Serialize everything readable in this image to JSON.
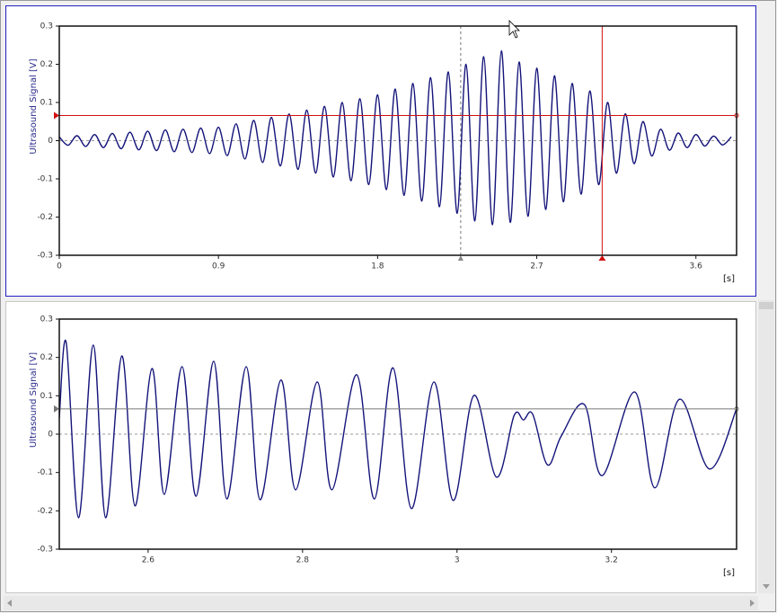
{
  "chart_data": [
    {
      "type": "line",
      "y_label": "Ultrasound Signal [V]",
      "x_unit": "[s]",
      "xlim": [
        0,
        3.83
      ],
      "xticks": [
        0,
        0.9,
        1.8,
        2.7,
        3.6
      ],
      "ylim": [
        -0.3,
        0.3
      ],
      "yticks": [
        -0.3,
        -0.2,
        -0.1,
        0,
        0.1,
        0.2,
        0.3
      ],
      "cursor_x": 3.07,
      "cursor_y": 0.066,
      "marker_x": 2.27,
      "cursor_color": "#d01010",
      "series": [
        {
          "color": "#14147a",
          "x": [
            0,
            0.05,
            0.1,
            0.15,
            0.2,
            0.25,
            0.3,
            0.35,
            0.4,
            0.45,
            0.5,
            0.55,
            0.6,
            0.65,
            0.7,
            0.75,
            0.8,
            0.85,
            0.9,
            0.95,
            1,
            1.05,
            1.1,
            1.15,
            1.2,
            1.25,
            1.3,
            1.35,
            1.4,
            1.45,
            1.5,
            1.55,
            1.6,
            1.65,
            1.7,
            1.75,
            1.8,
            1.85,
            1.9,
            1.95,
            2,
            2.05,
            2.1,
            2.15,
            2.2,
            2.25,
            2.3,
            2.35,
            2.4,
            2.45,
            2.5,
            2.55,
            2.6,
            2.65,
            2.7,
            2.75,
            2.8,
            2.85,
            2.9,
            2.95,
            3,
            3.05,
            3.1,
            3.15,
            3.2,
            3.25,
            3.3,
            3.35,
            3.4,
            3.45,
            3.5,
            3.55,
            3.6,
            3.65,
            3.7,
            3.75,
            3.8
          ],
          "values": [
            0.01,
            -0.012,
            0.013,
            -0.015,
            0.016,
            -0.018,
            0.019,
            -0.021,
            0.022,
            -0.024,
            0.025,
            -0.026,
            0.028,
            -0.029,
            0.03,
            -0.031,
            0.033,
            -0.034,
            0.035,
            -0.039,
            0.044,
            -0.048,
            0.053,
            -0.057,
            0.061,
            -0.066,
            0.07,
            -0.075,
            0.08,
            -0.085,
            0.09,
            -0.095,
            0.1,
            -0.105,
            0.11,
            -0.115,
            0.12,
            -0.128,
            0.135,
            -0.143,
            0.15,
            -0.158,
            0.165,
            -0.173,
            0.18,
            -0.19,
            0.2,
            -0.21,
            0.22,
            -0.22,
            0.235,
            -0.214,
            0.206,
            -0.198,
            0.19,
            -0.18,
            0.17,
            -0.16,
            0.15,
            -0.14,
            0.13,
            -0.115,
            0.1,
            -0.085,
            0.07,
            -0.06,
            0.05,
            -0.04,
            0.03,
            -0.025,
            0.02,
            -0.018,
            0.016,
            -0.014,
            0.012,
            -0.011,
            0.01
          ]
        }
      ]
    },
    {
      "type": "line",
      "y_label": "Ultrasound Signal [V]",
      "x_unit": "[s]",
      "xlim": [
        2.485,
        3.362
      ],
      "xticks": [
        2.6,
        2.8,
        3,
        3.2
      ],
      "ylim": [
        -0.3,
        0.3
      ],
      "yticks": [
        -0.3,
        -0.2,
        -0.1,
        0,
        0.1,
        0.2,
        0.3
      ],
      "cursor_y": 0.066,
      "cursor_color": "#777777",
      "series": [
        {
          "color": "#14147a",
          "x": [
            2.485,
            2.494,
            2.51,
            2.529,
            2.545,
            2.566,
            2.583,
            2.605,
            2.621,
            2.644,
            2.662,
            2.685,
            2.702,
            2.727,
            2.745,
            2.772,
            2.791,
            2.819,
            2.838,
            2.87,
            2.893,
            2.917,
            2.941,
            2.97,
            2.995,
            3.022,
            3.051,
            3.074,
            3.086,
            3.098,
            3.117,
            3.135,
            3.165,
            3.188,
            3.23,
            3.256,
            3.288,
            3.327,
            3.362
          ],
          "values": [
            0.042,
            0.239,
            -0.218,
            0.232,
            -0.218,
            0.204,
            -0.187,
            0.171,
            -0.157,
            0.176,
            -0.162,
            0.19,
            -0.169,
            0.176,
            -0.171,
            0.141,
            -0.145,
            0.136,
            -0.145,
            0.155,
            -0.169,
            0.173,
            -0.194,
            0.136,
            -0.173,
            0.101,
            -0.112,
            0.049,
            0.037,
            0.052,
            -0.08,
            -0.005,
            0.077,
            -0.108,
            0.11,
            -0.14,
            0.091,
            -0.091,
            0.066
          ]
        }
      ]
    }
  ]
}
